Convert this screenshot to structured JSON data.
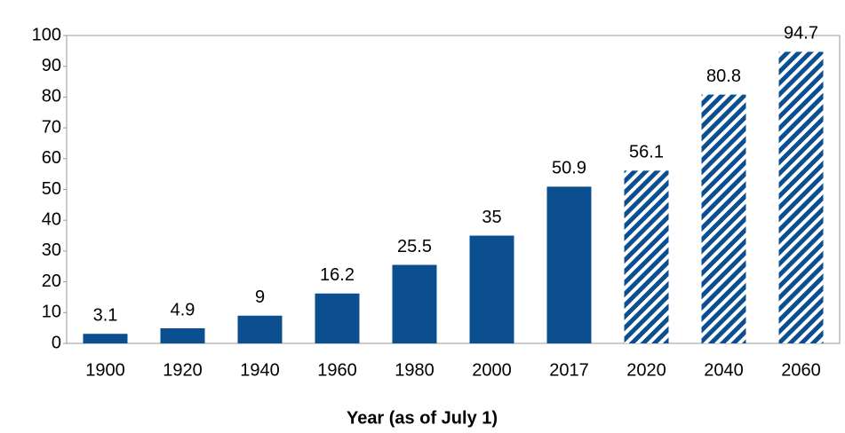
{
  "chart_data": {
    "type": "bar",
    "x_label": "Year (as of July 1)",
    "categories": [
      "1900",
      "1920",
      "1940",
      "1960",
      "1980",
      "2000",
      "2017",
      "2020",
      "2040",
      "2060"
    ],
    "values": [
      3.1,
      4.9,
      9,
      16.2,
      25.5,
      35,
      50.9,
      56.1,
      80.8,
      94.7
    ],
    "bar_styles": [
      "solid",
      "solid",
      "solid",
      "solid",
      "solid",
      "solid",
      "solid",
      "hatched",
      "hatched",
      "hatched"
    ],
    "color": "#0b4f91",
    "ylim": [
      0,
      100
    ],
    "yticks": [
      0,
      10,
      20,
      30,
      40,
      50,
      60,
      70,
      80,
      90,
      100
    ],
    "grid": false
  }
}
